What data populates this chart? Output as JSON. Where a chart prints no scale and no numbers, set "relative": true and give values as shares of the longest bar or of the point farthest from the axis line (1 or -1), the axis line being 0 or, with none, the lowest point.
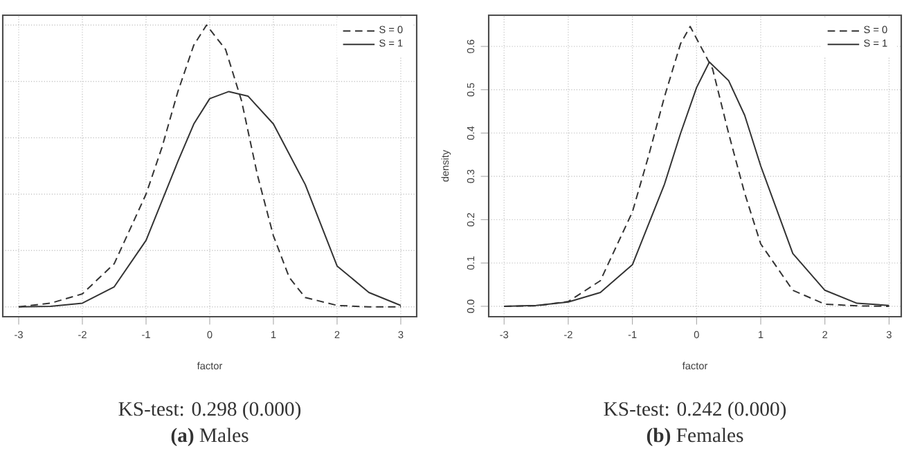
{
  "chart_data": [
    {
      "type": "line",
      "xlabel": "factor",
      "xlim": [
        -3.25,
        3.25
      ],
      "xticks": [
        -3,
        -2,
        -1,
        0,
        1,
        2,
        3
      ],
      "relative": true,
      "grid": true,
      "legend": "top right",
      "tick_labels": "x",
      "marker": "none",
      "annotations": [
        "KS-test: 0.298 (0.000)",
        "**(a)** Males"
      ],
      "series": [
        {
          "name": "S = 0",
          "color": "#333333",
          "line_style": "dashed",
          "x": [
            -3,
            -2.5,
            -2,
            -1.5,
            -1,
            -0.75,
            -0.5,
            -0.25,
            -0.05,
            0.25,
            0.5,
            0.75,
            1,
            1.25,
            1.5,
            2,
            2.5,
            3
          ],
          "values": [
            0,
            0.013,
            0.046,
            0.153,
            0.4,
            0.566,
            0.764,
            0.929,
            1,
            0.913,
            0.731,
            0.467,
            0.252,
            0.104,
            0.033,
            0.005,
            0,
            0
          ]
        },
        {
          "name": "S = 1",
          "color": "#333333",
          "line_style": "solid",
          "x": [
            -3,
            -2.5,
            -2,
            -1.5,
            -1,
            -0.5,
            -0.25,
            0,
            0.3,
            0.6,
            1,
            1.5,
            2,
            2.5,
            3
          ],
          "values": [
            0,
            0.002,
            0.013,
            0.071,
            0.236,
            0.516,
            0.649,
            0.739,
            0.764,
            0.748,
            0.649,
            0.434,
            0.145,
            0.051,
            0.005
          ]
        }
      ]
    },
    {
      "type": "line",
      "xlabel": "factor",
      "ylabel": "density",
      "xlim": [
        -3.24,
        3.19
      ],
      "xticks": [
        -3,
        -2,
        -1,
        0,
        1,
        2,
        3
      ],
      "ylim": [
        -0.024,
        0.672
      ],
      "yticks": [
        {
          "value": 0,
          "label": "0.0"
        },
        0.1,
        0.2,
        0.3,
        0.4,
        0.5,
        0.6
      ],
      "grid": true,
      "legend": "top right",
      "marker": "none",
      "annotations": [
        "KS-test: 0.242 (0.000)",
        "**(b)** Females"
      ],
      "series": [
        {
          "name": "S = 0",
          "color": "#333333",
          "line_style": "dashed",
          "x": [
            -3,
            -2.5,
            -2,
            -1.5,
            -1,
            -0.75,
            -0.5,
            -0.25,
            -0.1,
            0.25,
            0.5,
            0.75,
            1,
            1.5,
            2,
            2.5,
            3
          ],
          "values": [
            0,
            0.001,
            0.011,
            0.059,
            0.218,
            0.346,
            0.484,
            0.606,
            0.646,
            0.548,
            0.399,
            0.261,
            0.144,
            0.037,
            0.005,
            0.001,
            0
          ]
        },
        {
          "name": "S = 1",
          "color": "#333333",
          "line_style": "solid",
          "x": [
            -3,
            -2.5,
            -2,
            -1.5,
            -1,
            -0.5,
            -0.25,
            0,
            0.2,
            0.5,
            0.75,
            1,
            1.5,
            2,
            2.5,
            3
          ],
          "values": [
            0,
            0.002,
            0.01,
            0.032,
            0.096,
            0.282,
            0.399,
            0.505,
            0.564,
            0.521,
            0.441,
            0.324,
            0.122,
            0.037,
            0.007,
            0.002
          ]
        }
      ]
    }
  ]
}
